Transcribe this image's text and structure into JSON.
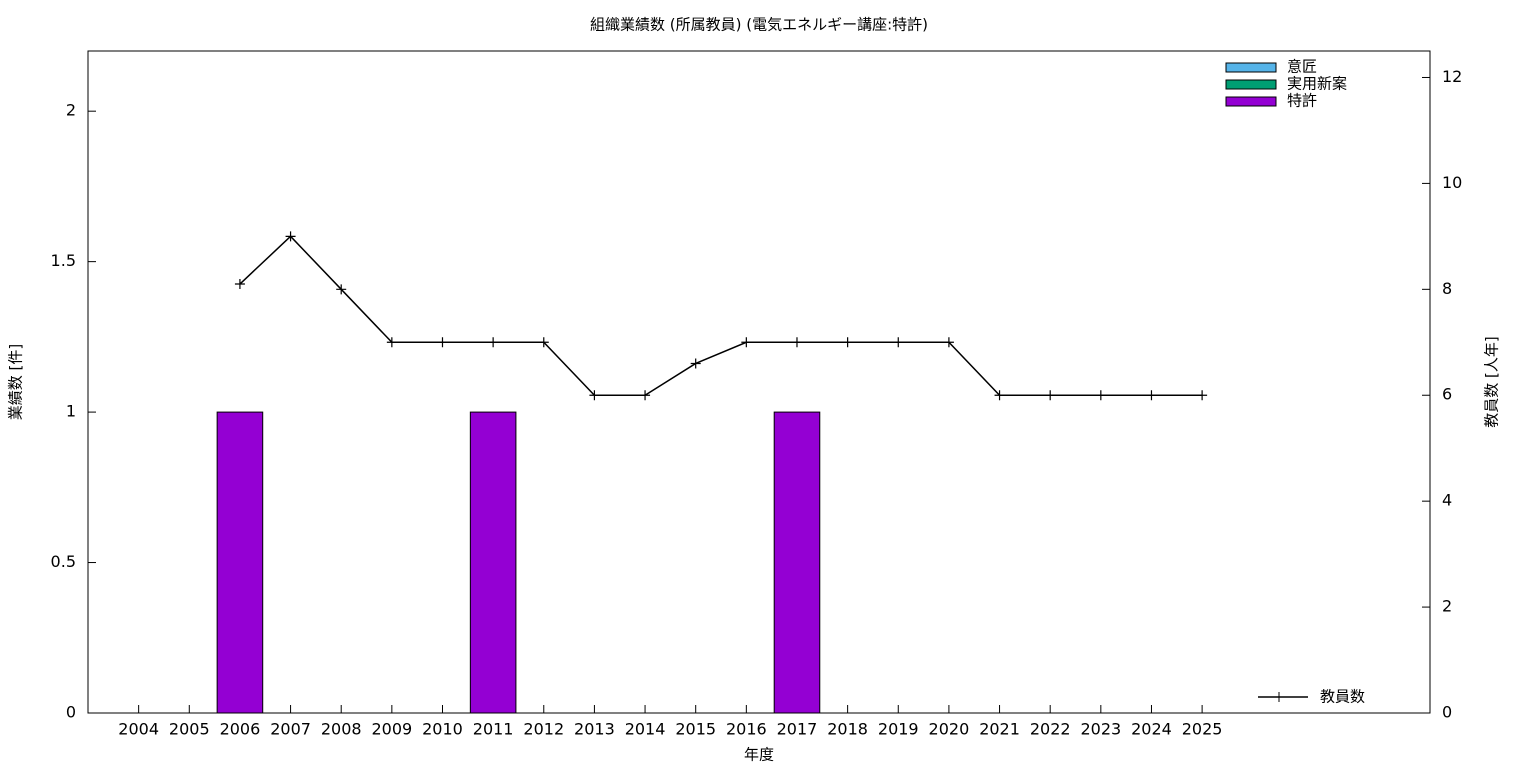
{
  "chart_data": {
    "type": "bar",
    "title": "組織業績数 (所属教員) (電気エネルギー講座:特許)",
    "x_label": "年度",
    "y_label": "業績数 [件]",
    "y2_label": "教員数 [人年]",
    "x": [
      2004,
      2005,
      2006,
      2007,
      2008,
      2009,
      2010,
      2011,
      2012,
      2013,
      2014,
      2015,
      2016,
      2017,
      2018,
      2019,
      2020,
      2021,
      2022,
      2023,
      2024,
      2025
    ],
    "xlim": [
      2003,
      2029.5
    ],
    "xticks": [
      2004,
      2005,
      2006,
      2007,
      2008,
      2009,
      2010,
      2011,
      2012,
      2013,
      2014,
      2015,
      2016,
      2017,
      2018,
      2019,
      2020,
      2021,
      2022,
      2023,
      2024,
      2025
    ],
    "ylim": [
      0,
      2.2
    ],
    "yticks": [
      0,
      0.5,
      1,
      1.5,
      2
    ],
    "y2lim": [
      0,
      12.5
    ],
    "y2ticks": [
      0,
      2,
      4,
      6,
      8,
      10,
      12
    ],
    "bar_width": 0.9,
    "legend": "top right",
    "series": [
      {
        "name": "意匠",
        "color": "#56b4e9",
        "values": [
          0,
          0,
          0,
          0,
          0,
          0,
          0,
          0,
          0,
          0,
          0,
          0,
          0,
          0,
          0,
          0,
          0,
          0,
          0,
          0,
          0,
          0
        ]
      },
      {
        "name": "実用新案",
        "color": "#009e73",
        "values": [
          0,
          0,
          0,
          0,
          0,
          0,
          0,
          0,
          0,
          0,
          0,
          0,
          0,
          0,
          0,
          0,
          0,
          0,
          0,
          0,
          0,
          0
        ]
      },
      {
        "name": "特許",
        "color": "#9400d3",
        "values": [
          0,
          0,
          1,
          0,
          0,
          0,
          0,
          1,
          0,
          0,
          0,
          0,
          0,
          1,
          0,
          0,
          0,
          0,
          0,
          0,
          0,
          0
        ]
      },
      {
        "name": "教員数",
        "color": "#000000",
        "type": "line",
        "axis": "y2",
        "legend": "bottom right",
        "values": [
          null,
          null,
          8.1,
          9,
          8,
          7,
          7,
          7,
          7,
          6,
          6,
          6.6,
          7,
          7,
          7,
          7,
          7,
          6,
          6,
          6,
          6,
          6
        ]
      }
    ]
  }
}
